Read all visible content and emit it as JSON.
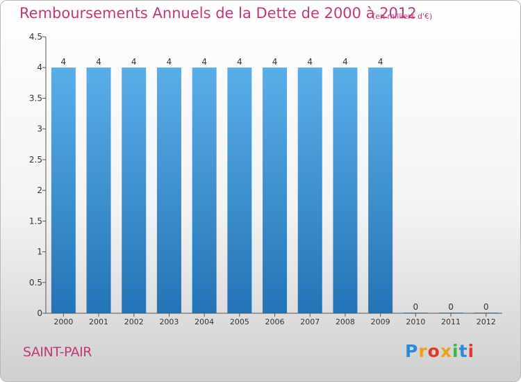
{
  "chart_data": {
    "type": "bar",
    "title": "Remboursements Annuels de la Dette de 2000 à 2012",
    "unit": "(en milliers d'€)",
    "categories": [
      "2000",
      "2001",
      "2002",
      "2003",
      "2004",
      "2005",
      "2006",
      "2007",
      "2008",
      "2009",
      "2010",
      "2011",
      "2012"
    ],
    "values": [
      4,
      4,
      4,
      4,
      4,
      4,
      4,
      4,
      4,
      4,
      0,
      0,
      0
    ],
    "value_labels": [
      "4",
      "4",
      "4",
      "4",
      "4",
      "4",
      "4",
      "4",
      "4",
      "4",
      "0",
      "0",
      "0"
    ],
    "ylim": [
      0,
      4.5
    ],
    "yticks": [
      0,
      0.5,
      1,
      1.5,
      2,
      2.5,
      3,
      3.5,
      4,
      4.5
    ],
    "ytick_labels": [
      "0",
      "0.5",
      "1",
      "1.5",
      "2",
      "2.5",
      "3",
      "3.5",
      "4",
      "4.5"
    ],
    "grid": false,
    "colors": {
      "bar_top": "#5aaee8",
      "bar_bottom": "#2374b6",
      "title": "#c0387a"
    }
  },
  "place": "SAINT-PAIR",
  "brand": {
    "letters": [
      "P",
      "r",
      "o",
      "x",
      "i",
      "t",
      "i"
    ],
    "colors": [
      "#2e8ad8",
      "#f0a11c",
      "#e2372c",
      "#f0a11c",
      "#3cb54a",
      "#2e8ad8",
      "#e2372c"
    ]
  }
}
